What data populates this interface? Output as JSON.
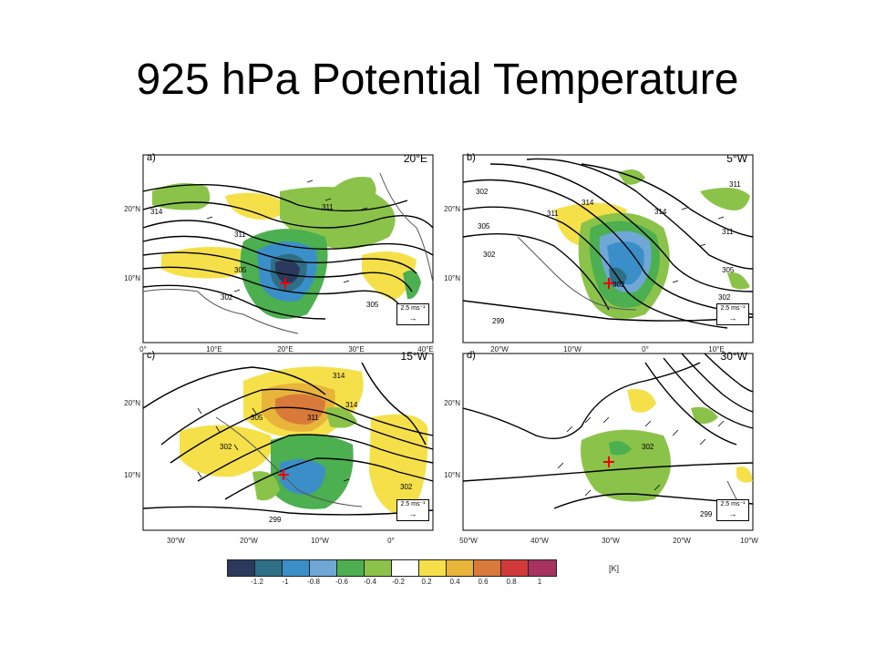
{
  "title": "925 hPa Potential Temperature",
  "panels": [
    {
      "label": "a)",
      "lon": "20°E",
      "x_ticks": [
        "0°",
        "10°E",
        "20°E",
        "30°E",
        "40°E"
      ],
      "y_ticks": [
        "20°N",
        "10°N"
      ],
      "contour_labels": [
        "314",
        "311",
        "311",
        "305",
        "302",
        "305"
      ],
      "ref_vector": "2.5 ms⁻¹"
    },
    {
      "label": "b)",
      "lon": "5°W",
      "x_ticks": [
        "20°W",
        "10°W",
        "0°",
        "10°E"
      ],
      "y_ticks": [
        "20°N",
        "10°N"
      ],
      "contour_labels": [
        "302",
        "314",
        "311",
        "305",
        "302",
        "302",
        "311",
        "305",
        "302",
        "299",
        "311",
        "314"
      ],
      "ref_vector": "2.5 ms⁻¹"
    },
    {
      "label": "c)",
      "lon": "15°W",
      "x_ticks": [
        "30°W",
        "20°W",
        "10°W",
        "0°"
      ],
      "y_ticks": [
        "20°N",
        "10°N"
      ],
      "contour_labels": [
        "314",
        "314",
        "305",
        "311",
        "302",
        "302",
        "299"
      ],
      "ref_vector": "2.5 ms⁻¹"
    },
    {
      "label": "d)",
      "lon": "30°W",
      "x_ticks": [
        "50°W",
        "40°W",
        "30°W",
        "20°W",
        "10°W"
      ],
      "y_ticks": [
        "20°N",
        "10°N"
      ],
      "contour_labels": [
        "302",
        "299"
      ],
      "ref_vector": "2.5 ms⁻¹"
    }
  ],
  "colorbar": {
    "ticks": [
      "-1.2",
      "-1",
      "-0.8",
      "-0.6",
      "-0.4",
      "-0.2",
      "0.2",
      "0.4",
      "0.6",
      "0.8",
      "1"
    ],
    "unit": "[K]",
    "colors": [
      "#2b3a5c",
      "#2e6e86",
      "#3b8fc8",
      "#6fa7d6",
      "#4caf50",
      "#8bc34a",
      "#ffffff",
      "#f5e04a",
      "#e9b43a",
      "#d97a3a",
      "#d23a3a",
      "#a8325e"
    ]
  }
}
